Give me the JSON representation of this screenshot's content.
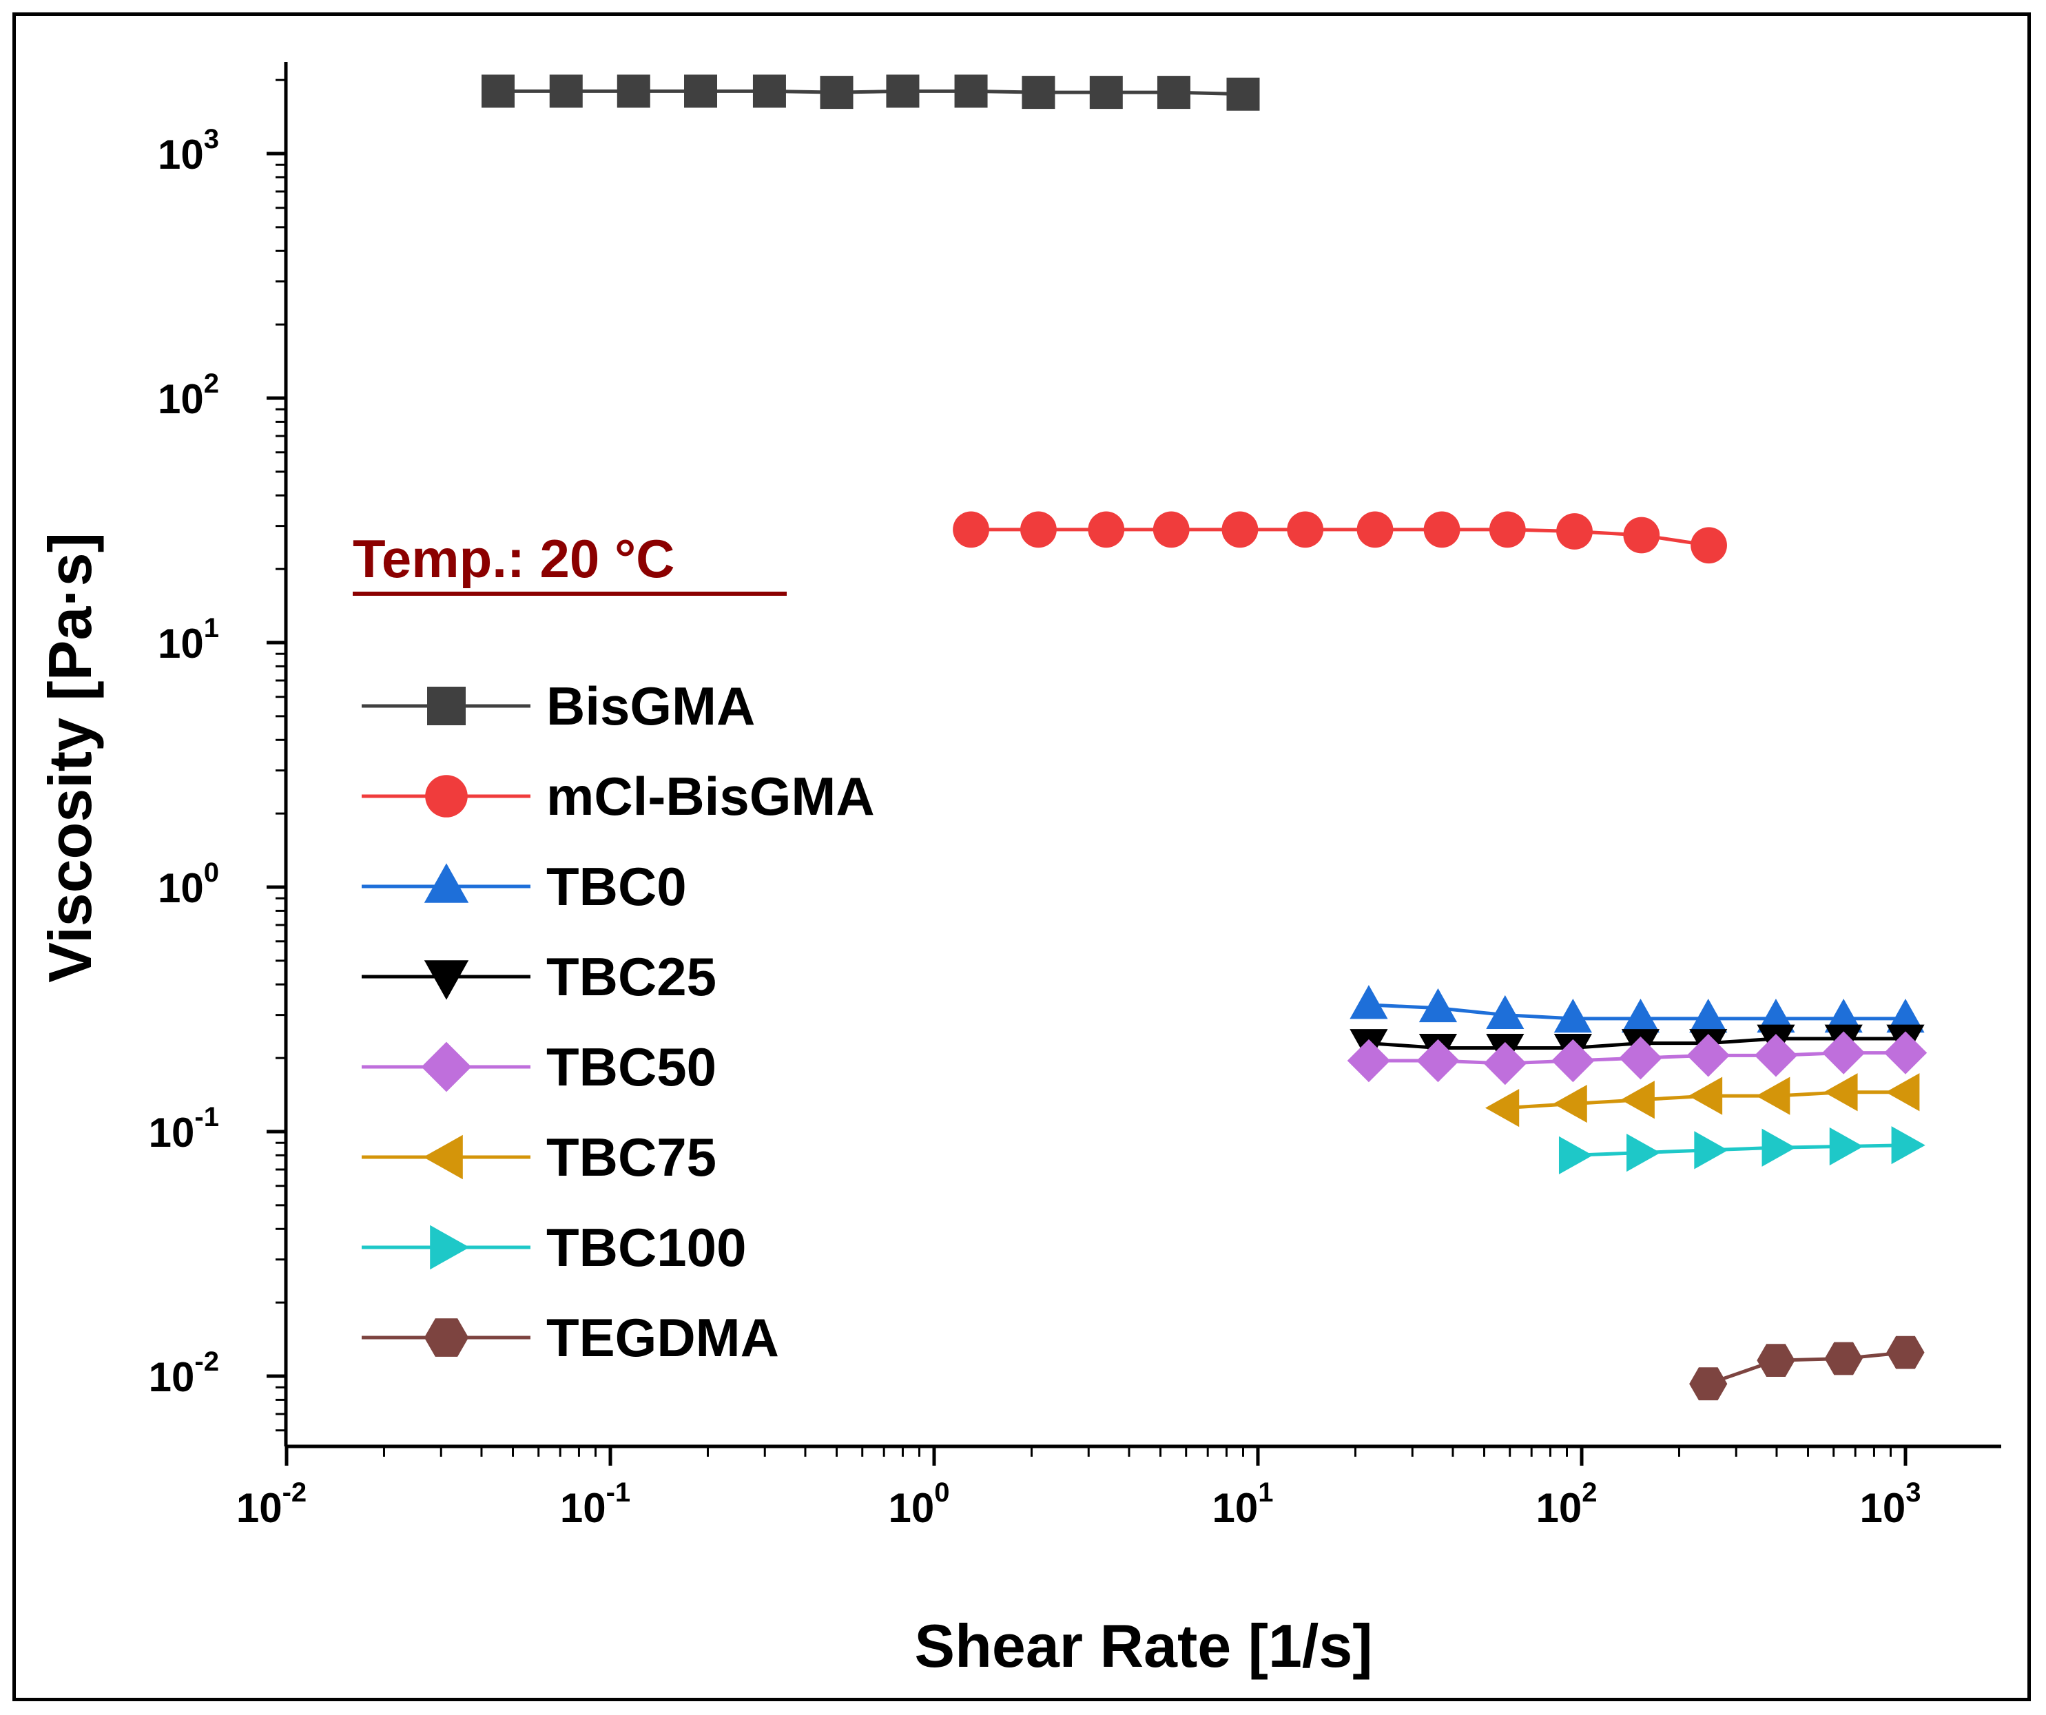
{
  "chart_data": {
    "type": "line",
    "xscale": "log",
    "yscale": "log",
    "xlabel": "Shear Rate [1/s]",
    "ylabel": "Viscosity [Pa·s]",
    "xlim": [
      0.01,
      2000
    ],
    "ylim": [
      0.005,
      2200
    ],
    "xticks": [
      {
        "base": "10",
        "exp": "-2",
        "value": 0.01
      },
      {
        "base": "10",
        "exp": "-1",
        "value": 0.1
      },
      {
        "base": "10",
        "exp": "0",
        "value": 1
      },
      {
        "base": "10",
        "exp": "1",
        "value": 10
      },
      {
        "base": "10",
        "exp": "2",
        "value": 100
      },
      {
        "base": "10",
        "exp": "3",
        "value": 1000
      }
    ],
    "yticks": [
      {
        "base": "10",
        "exp": "-2",
        "value": 0.01
      },
      {
        "base": "10",
        "exp": "-1",
        "value": 0.1
      },
      {
        "base": "10",
        "exp": "0",
        "value": 1
      },
      {
        "base": "10",
        "exp": "1",
        "value": 10
      },
      {
        "base": "10",
        "exp": "2",
        "value": 100
      },
      {
        "base": "10",
        "exp": "3",
        "value": 1000
      }
    ],
    "annotation": "Temp.: 20 °C",
    "legend_position": "left",
    "series": [
      {
        "name": "BisGMA",
        "color": "#404040",
        "marker": "square",
        "x": [
          0.045,
          0.073,
          0.118,
          0.19,
          0.31,
          0.5,
          0.8,
          1.3,
          2.1,
          3.4,
          5.5,
          9.0
        ],
        "y": [
          1800,
          1800,
          1800,
          1800,
          1800,
          1780,
          1800,
          1800,
          1780,
          1780,
          1780,
          1750
        ]
      },
      {
        "name": "mCl-BisGMA",
        "color": "#f03c3c",
        "marker": "circle",
        "x": [
          1.3,
          2.1,
          3.4,
          5.4,
          8.8,
          14,
          23,
          37,
          59,
          95,
          153,
          247
        ],
        "y": [
          29,
          29,
          29,
          29,
          29,
          29,
          29,
          29,
          29,
          28.5,
          27.5,
          25
        ]
      },
      {
        "name": "TBC0",
        "color": "#1e6fd9",
        "marker": "triangle-up",
        "x": [
          22,
          36,
          58,
          94,
          152,
          246,
          398,
          644,
          1000
        ],
        "y": [
          0.33,
          0.32,
          0.3,
          0.29,
          0.29,
          0.29,
          0.29,
          0.29,
          0.29
        ]
      },
      {
        "name": "TBC25",
        "color": "#000000",
        "marker": "triangle-down",
        "x": [
          22,
          36,
          58,
          94,
          152,
          246,
          398,
          644,
          1000
        ],
        "y": [
          0.23,
          0.22,
          0.22,
          0.22,
          0.23,
          0.23,
          0.24,
          0.24,
          0.24
        ]
      },
      {
        "name": "TBC50",
        "color": "#bf6fdc",
        "marker": "diamond",
        "x": [
          22,
          36,
          58,
          94,
          152,
          246,
          398,
          644,
          1000
        ],
        "y": [
          0.195,
          0.195,
          0.19,
          0.195,
          0.2,
          0.205,
          0.205,
          0.21,
          0.21
        ]
      },
      {
        "name": "TBC75",
        "color": "#d4950a",
        "marker": "triangle-left",
        "x": [
          58,
          94,
          152,
          246,
          398,
          644,
          1000
        ],
        "y": [
          0.125,
          0.13,
          0.135,
          0.14,
          0.14,
          0.145,
          0.145
        ]
      },
      {
        "name": "TBC100",
        "color": "#1ec8c8",
        "marker": "triangle-right",
        "x": [
          94,
          152,
          246,
          398,
          644,
          1000
        ],
        "y": [
          0.08,
          0.082,
          0.084,
          0.086,
          0.087,
          0.088
        ]
      },
      {
        "name": "TEGDMA",
        "color": "#7d4440",
        "marker": "hexagon",
        "x": [
          246,
          398,
          644,
          1000
        ],
        "y": [
          0.0093,
          0.0116,
          0.0118,
          0.0125
        ]
      }
    ]
  }
}
